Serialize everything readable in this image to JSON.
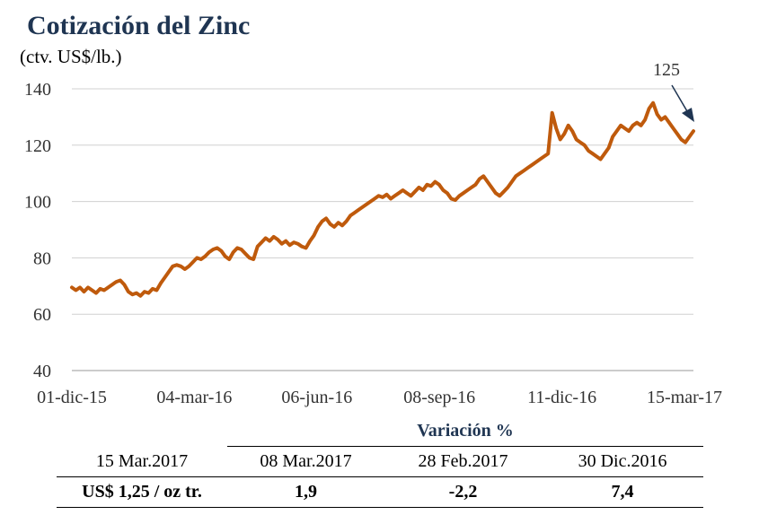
{
  "chart_data": {
    "type": "line",
    "title": "Cotización del Zinc",
    "subtitle": "(ctv. US$/lb.)",
    "ylim": [
      40,
      140
    ],
    "yticks": [
      40,
      60,
      80,
      100,
      120,
      140
    ],
    "x_tick_labels": [
      "01-dic-15",
      "04-mar-16",
      "06-jun-16",
      "08-sep-16",
      "11-dic-16",
      "15-mar-17"
    ],
    "grid": "horizontal",
    "series_color": "#bf5a0c",
    "annotation": {
      "text": "125",
      "value": 125,
      "date": "15-mar-17"
    },
    "series": [
      {
        "values": [
          69.5,
          68.5,
          69.5,
          68,
          69.5,
          68.5,
          67.5,
          69,
          68.5,
          69.5,
          70.5,
          71.5,
          72,
          70.5,
          68,
          67,
          67.5,
          66.5,
          68,
          67.5,
          69,
          68.5,
          71,
          73,
          75,
          77,
          77.5,
          77,
          76,
          77,
          78.5,
          80,
          79.5,
          80.5,
          82,
          83,
          83.5,
          82.5,
          80.5,
          79.5,
          82,
          83.5,
          83,
          81.5,
          80,
          79.5,
          84,
          85.5,
          87,
          86,
          87.5,
          86.5,
          85,
          86,
          84.5,
          85.5,
          85,
          84,
          83.5,
          86,
          88,
          91,
          93,
          94,
          92,
          91,
          92.5,
          91.5,
          93,
          95,
          96,
          97,
          98,
          99,
          100,
          101,
          102,
          101.5,
          102.5,
          101,
          102,
          103,
          104,
          103,
          102,
          103.5,
          105,
          104,
          106,
          105.5,
          107,
          106,
          104,
          103,
          101,
          100.5,
          102,
          103,
          104,
          105,
          106,
          108,
          109,
          107,
          105,
          103,
          102,
          103.5,
          105,
          107,
          109,
          110,
          111,
          112,
          113,
          114,
          115,
          116,
          117,
          131.5,
          126,
          122,
          124,
          127,
          125,
          122,
          121,
          120,
          118,
          117,
          116,
          115,
          117,
          119,
          123,
          125,
          127,
          126,
          125,
          127,
          128,
          127,
          129,
          133,
          135,
          131,
          129,
          130,
          128,
          126,
          124,
          122,
          121,
          123,
          125
        ]
      }
    ]
  },
  "table": {
    "header": "Variación %",
    "columns": [
      "15 Mar.2017",
      "08 Mar.2017",
      "28 Feb.2017",
      "30 Dic.2016"
    ],
    "row_label": "US$ 1,25 / oz tr.",
    "values": [
      "1,9",
      "-2,2",
      "7,4"
    ]
  }
}
